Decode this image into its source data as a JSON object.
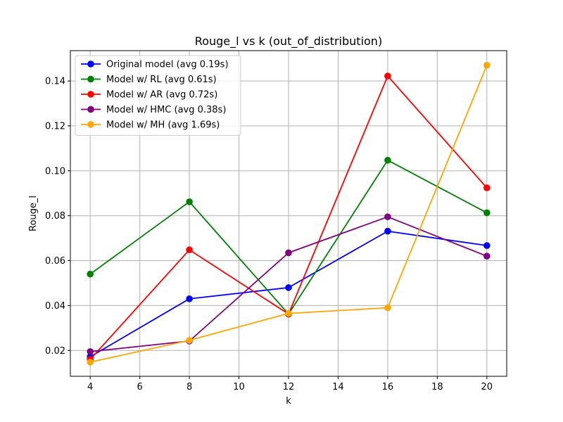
{
  "chart_data": {
    "type": "line",
    "title": "Rouge_l vs k (out_of_distribution)",
    "xlabel": "k",
    "ylabel": "Rouge_l",
    "xlim": [
      3.2,
      20.8
    ],
    "ylim": [
      0.0085,
      0.1535
    ],
    "xticks": [
      4,
      6,
      8,
      10,
      12,
      14,
      16,
      18,
      20
    ],
    "yticks": [
      0.02,
      0.04,
      0.06,
      0.08,
      0.1,
      0.12,
      0.14
    ],
    "ytick_labels": [
      "0.02",
      "0.04",
      "0.06",
      "0.08",
      "0.10",
      "0.12",
      "0.14"
    ],
    "grid": true,
    "legend_position": "top-left",
    "x": [
      4,
      8,
      12,
      16,
      20
    ],
    "series": [
      {
        "name": "Original model (avg 0.19s)",
        "color": "#0000ff",
        "values": [
          0.0172,
          0.043,
          0.048,
          0.0731,
          0.0667
        ]
      },
      {
        "name": "Model w/ RL (avg 0.61s)",
        "color": "#008000",
        "values": [
          0.054,
          0.0862,
          0.0362,
          0.1047,
          0.0813
        ]
      },
      {
        "name": "Model w/ AR (avg 0.72s)",
        "color": "#ff0000",
        "values": [
          0.016,
          0.0648,
          0.0362,
          0.1422,
          0.0924
        ]
      },
      {
        "name": "Model w/ HMC (avg 0.38s)",
        "color": "#800080",
        "values": [
          0.0195,
          0.0242,
          0.0635,
          0.0795,
          0.062
        ]
      },
      {
        "name": "Model w/ MH (avg 1.69s)",
        "color": "#ffa500",
        "values": [
          0.0148,
          0.0245,
          0.0365,
          0.039,
          0.147
        ]
      }
    ]
  }
}
